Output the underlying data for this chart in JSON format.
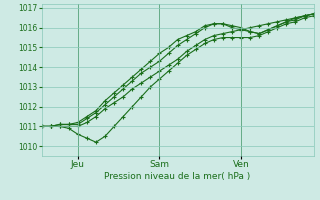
{
  "background_color": "#ceeae4",
  "plot_bg_color": "#ceeae4",
  "line_color": "#1a6e1a",
  "marker_color": "#1a6e1a",
  "grid_color": "#88c8b8",
  "tick_label_color": "#1a6e1a",
  "xlabel": "Pression niveau de la mer( hPa )",
  "xlabel_color": "#1a6e1a",
  "ylim": [
    1009.5,
    1017.2
  ],
  "yticks": [
    1010,
    1011,
    1012,
    1013,
    1014,
    1015,
    1016,
    1017
  ],
  "xtick_labels": [
    "Jeu",
    "Sam",
    "Ven"
  ],
  "xtick_positions": [
    16,
    52,
    88
  ],
  "vline_positions": [
    16,
    52,
    88
  ],
  "xlim": [
    0,
    120
  ],
  "lines": [
    {
      "x": [
        0,
        4,
        8,
        12,
        16,
        20,
        24,
        28,
        32,
        36,
        40,
        44,
        48,
        52,
        56,
        60,
        64,
        68,
        72,
        76,
        80,
        84,
        88,
        92,
        96,
        100,
        104,
        108,
        112,
        116,
        120
      ],
      "y": [
        1011.0,
        1011.0,
        1011.1,
        1011.1,
        1011.1,
        1011.4,
        1011.7,
        1012.1,
        1012.5,
        1012.9,
        1013.3,
        1013.7,
        1014.0,
        1014.3,
        1014.7,
        1015.1,
        1015.4,
        1015.7,
        1016.0,
        1016.2,
        1016.2,
        1016.1,
        1016.0,
        1015.8,
        1015.7,
        1015.9,
        1016.1,
        1016.3,
        1016.5,
        1016.6,
        1016.7
      ]
    },
    {
      "x": [
        0,
        4,
        8,
        12,
        16,
        20,
        24,
        28,
        32,
        36,
        40,
        44,
        48,
        52,
        56,
        60,
        64,
        68,
        72,
        76,
        80,
        84,
        88,
        92,
        96,
        100,
        104,
        108,
        112,
        116,
        120
      ],
      "y": [
        1011.0,
        1011.0,
        1011.0,
        1010.9,
        1010.6,
        1010.4,
        1010.2,
        1010.5,
        1011.0,
        1011.5,
        1012.0,
        1012.5,
        1013.0,
        1013.4,
        1013.8,
        1014.2,
        1014.6,
        1014.9,
        1015.2,
        1015.4,
        1015.5,
        1015.5,
        1015.5,
        1015.5,
        1015.6,
        1015.8,
        1016.0,
        1016.2,
        1016.3,
        1016.5,
        1016.6
      ]
    },
    {
      "x": [
        0,
        4,
        8,
        12,
        16,
        20,
        24,
        28,
        32,
        36,
        40,
        44,
        48,
        52,
        56,
        60,
        64,
        68,
        72,
        76,
        80,
        84,
        88,
        92,
        96,
        100,
        104,
        108,
        112,
        116,
        120
      ],
      "y": [
        1011.0,
        1011.0,
        1011.1,
        1011.1,
        1011.2,
        1011.5,
        1011.8,
        1012.3,
        1012.7,
        1013.1,
        1013.5,
        1013.9,
        1014.3,
        1014.7,
        1015.0,
        1015.4,
        1015.6,
        1015.8,
        1016.1,
        1016.2,
        1016.2,
        1016.0,
        1015.9,
        1015.8,
        1015.7,
        1015.9,
        1016.1,
        1016.3,
        1016.4,
        1016.6,
        1016.7
      ]
    },
    {
      "x": [
        0,
        4,
        8,
        12,
        16,
        20,
        24,
        28,
        32,
        36,
        40,
        44,
        48,
        52,
        56,
        60,
        64,
        68,
        72,
        76,
        80,
        84,
        88,
        92,
        96,
        100,
        104,
        108,
        112,
        116,
        120
      ],
      "y": [
        1011.0,
        1011.0,
        1011.0,
        1011.0,
        1011.0,
        1011.2,
        1011.5,
        1011.9,
        1012.2,
        1012.5,
        1012.9,
        1013.2,
        1013.5,
        1013.8,
        1014.1,
        1014.4,
        1014.8,
        1015.1,
        1015.4,
        1015.6,
        1015.7,
        1015.8,
        1015.9,
        1016.0,
        1016.1,
        1016.2,
        1016.3,
        1016.4,
        1016.5,
        1016.6,
        1016.7
      ]
    }
  ]
}
